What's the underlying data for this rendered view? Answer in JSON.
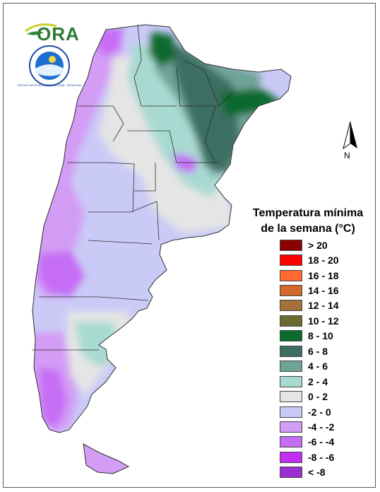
{
  "logo_text": "ORA",
  "seal_text": "SERVICIO METEOROLÓGICO NACIONAL · ARGENTINA",
  "north_label": "N",
  "legend": {
    "title_line1": "Temperatura mínima",
    "title_line2": "de la semana (°C)",
    "items": [
      {
        "label": "> 20",
        "color": "#8b0000"
      },
      {
        "label": "18 - 20",
        "color": "#ff0000"
      },
      {
        "label": "16 - 18",
        "color": "#ff6a33"
      },
      {
        "label": "14 - 16",
        "color": "#d2692c"
      },
      {
        "label": "12 - 14",
        "color": "#a4713a"
      },
      {
        "label": "10 - 12",
        "color": "#6b6b33"
      },
      {
        "label": "8 - 10",
        "color": "#0b6b2e"
      },
      {
        "label": "6 - 8",
        "color": "#3c6e64"
      },
      {
        "label": "4 - 6",
        "color": "#6fa397"
      },
      {
        "label": "2 - 4",
        "color": "#a9dad2"
      },
      {
        "label": "0 - 2",
        "color": "#e5e5e5"
      },
      {
        "label": "-2 - 0",
        "color": "#cacaf7"
      },
      {
        "label": "-4 - -2",
        "color": "#d39cf5"
      },
      {
        "label": "-6 - -4",
        "color": "#c66df5"
      },
      {
        "label": "-8 - -6",
        "color": "#c32ff2"
      },
      {
        "label": "< -8",
        "color": "#9a2ed0"
      }
    ]
  }
}
